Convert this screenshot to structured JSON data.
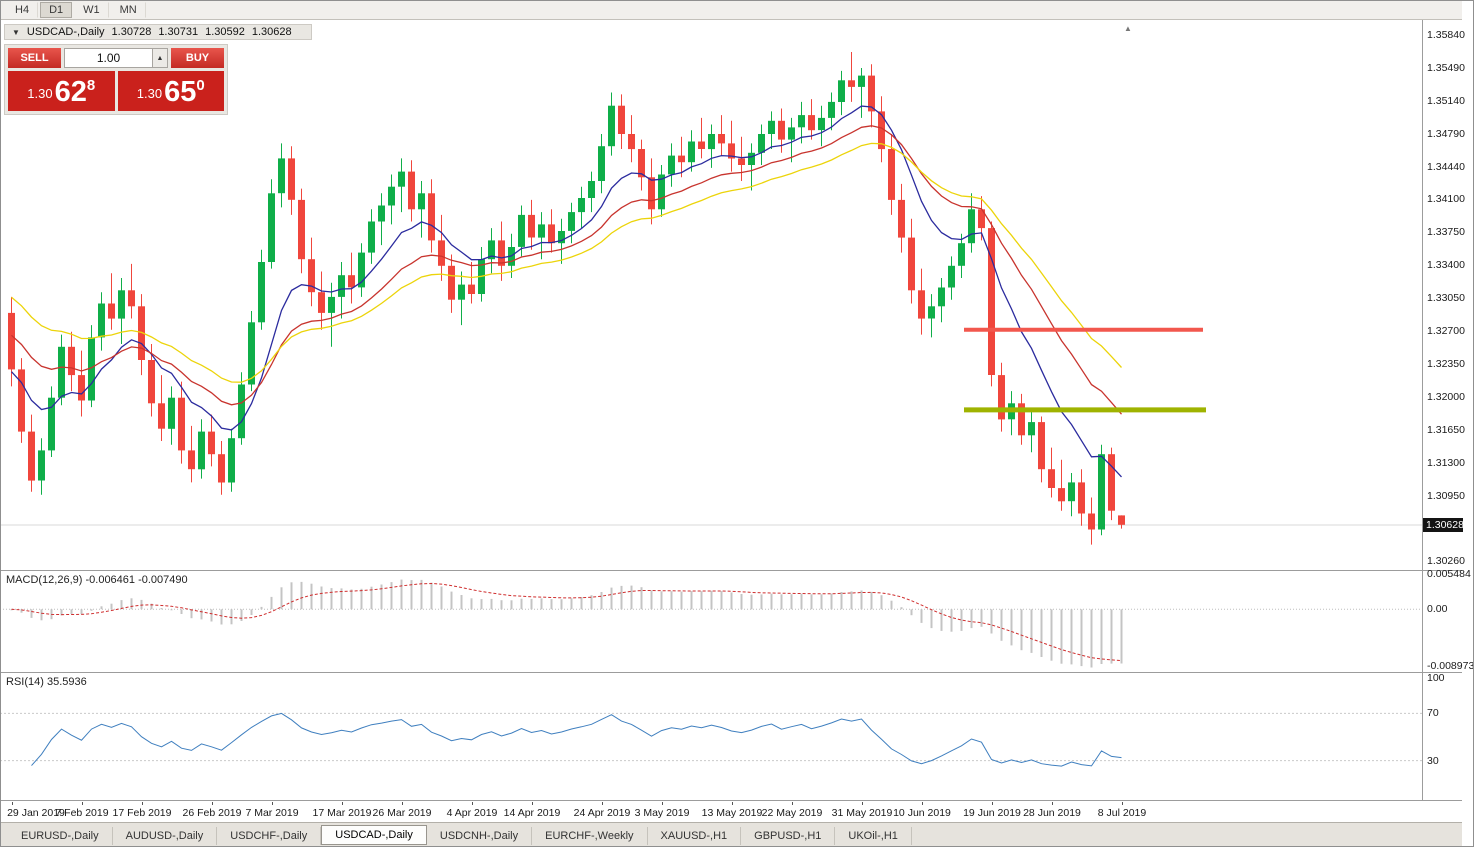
{
  "toolbar": {
    "timeframes": [
      "H4",
      "D1",
      "W1",
      "MN"
    ],
    "active": "D1"
  },
  "chart_header": {
    "symbol": "USDCAD-,Daily",
    "open": "1.30728",
    "high": "1.30731",
    "low": "1.30592",
    "close": "1.30628"
  },
  "trade_panel": {
    "sell_button": "SELL",
    "buy_button": "BUY",
    "volume": "1.00",
    "spinner_icon": "▲",
    "sell_price_prefix": "1.30",
    "sell_price_big": "62",
    "sell_price_sup": "8",
    "buy_price_prefix": "1.30",
    "buy_price_big": "65",
    "buy_price_sup": "0"
  },
  "indicators": {
    "macd_label": "MACD(12,26,9)",
    "macd_values": "-0.006461 -0.007490",
    "rsi_label": "RSI(14)",
    "rsi_value": "35.5936"
  },
  "tabs": {
    "items": [
      "EURUSD-,Daily",
      "AUDUSD-,Daily",
      "USDCHF-,Daily",
      "USDCAD-,Daily",
      "USDCNH-,Daily",
      "EURCHF-,Weekly",
      "XAUUSD-,H1",
      "GBPUSD-,H1",
      "UKOil-,H1"
    ],
    "active": "USDCAD-,Daily"
  },
  "chart_data": {
    "type": "candlestick",
    "title": "USDCAD-,Daily",
    "ohlc_display": {
      "open": 1.30728,
      "high": 1.30731,
      "low": 1.30592,
      "close": 1.30628
    },
    "y_range": [
      1.3015,
      1.3599
    ],
    "y_axis_labels": [
      "1.35840",
      "1.35490",
      "1.35140",
      "1.34790",
      "1.34440",
      "1.34100",
      "1.33750",
      "1.33400",
      "1.33050",
      "1.32700",
      "1.32350",
      "1.32000",
      "1.31650",
      "1.31300",
      "1.30950",
      "1.30260"
    ],
    "current_price": 1.30628,
    "current_price_label": "1.30628",
    "colors": {
      "up": "#0fae49",
      "down": "#f0463c",
      "current_line": "#d8d8d8"
    },
    "x_labels": [
      {
        "i": 0,
        "t": "29 Jan 2019"
      },
      {
        "i": 7,
        "t": "7 Feb 2019"
      },
      {
        "i": 13,
        "t": "17 Feb 2019"
      },
      {
        "i": 20,
        "t": "26 Feb 2019"
      },
      {
        "i": 26,
        "t": "7 Mar 2019"
      },
      {
        "i": 33,
        "t": "17 Mar 2019"
      },
      {
        "i": 39,
        "t": "26 Mar 2019"
      },
      {
        "i": 46,
        "t": "4 Apr 2019"
      },
      {
        "i": 52,
        "t": "14 Apr 2019"
      },
      {
        "i": 59,
        "t": "24 Apr 2019"
      },
      {
        "i": 65,
        "t": "3 May 2019"
      },
      {
        "i": 72,
        "t": "13 May 2019"
      },
      {
        "i": 78,
        "t": "22 May 2019"
      },
      {
        "i": 85,
        "t": "31 May 2019"
      },
      {
        "i": 91,
        "t": "10 Jun 2019"
      },
      {
        "i": 98,
        "t": "19 Jun 2019"
      },
      {
        "i": 104,
        "t": "28 Jun 2019"
      },
      {
        "i": 111,
        "t": "8 Jul 2019"
      }
    ],
    "candles": [
      [
        1.3288,
        1.3305,
        1.321,
        1.3228
      ],
      [
        1.3228,
        1.324,
        1.315,
        1.3162
      ],
      [
        1.3162,
        1.318,
        1.3098,
        1.311
      ],
      [
        1.311,
        1.3155,
        1.3095,
        1.3142
      ],
      [
        1.3142,
        1.321,
        1.3135,
        1.3198
      ],
      [
        1.3198,
        1.3265,
        1.319,
        1.3252
      ],
      [
        1.3252,
        1.3268,
        1.3205,
        1.3222
      ],
      [
        1.3222,
        1.3248,
        1.3178,
        1.3195
      ],
      [
        1.3195,
        1.3275,
        1.3188,
        1.3262
      ],
      [
        1.3262,
        1.331,
        1.3248,
        1.3298
      ],
      [
        1.3298,
        1.333,
        1.327,
        1.3282
      ],
      [
        1.3282,
        1.3325,
        1.3255,
        1.3312
      ],
      [
        1.3312,
        1.334,
        1.3282,
        1.3295
      ],
      [
        1.3295,
        1.3308,
        1.3222,
        1.3238
      ],
      [
        1.3238,
        1.3255,
        1.3178,
        1.3192
      ],
      [
        1.3192,
        1.3222,
        1.3152,
        1.3165
      ],
      [
        1.3165,
        1.321,
        1.3148,
        1.3198
      ],
      [
        1.3198,
        1.3215,
        1.3128,
        1.3142
      ],
      [
        1.3142,
        1.3168,
        1.3108,
        1.3122
      ],
      [
        1.3122,
        1.3175,
        1.3112,
        1.3162
      ],
      [
        1.3162,
        1.318,
        1.3125,
        1.3138
      ],
      [
        1.3138,
        1.3152,
        1.3095,
        1.3108
      ],
      [
        1.3108,
        1.3165,
        1.3098,
        1.3155
      ],
      [
        1.3155,
        1.3225,
        1.3148,
        1.3212
      ],
      [
        1.3212,
        1.329,
        1.3205,
        1.3278
      ],
      [
        1.3278,
        1.3355,
        1.327,
        1.3342
      ],
      [
        1.3342,
        1.343,
        1.3335,
        1.3415
      ],
      [
        1.3415,
        1.3468,
        1.34,
        1.3452
      ],
      [
        1.3452,
        1.3465,
        1.3392,
        1.3408
      ],
      [
        1.3408,
        1.342,
        1.333,
        1.3345
      ],
      [
        1.3345,
        1.3368,
        1.3295,
        1.331
      ],
      [
        1.331,
        1.3332,
        1.327,
        1.3288
      ],
      [
        1.3288,
        1.332,
        1.3252,
        1.3305
      ],
      [
        1.3305,
        1.3342,
        1.3282,
        1.3328
      ],
      [
        1.3328,
        1.3352,
        1.3298,
        1.3315
      ],
      [
        1.3315,
        1.3362,
        1.3305,
        1.3352
      ],
      [
        1.3352,
        1.3398,
        1.334,
        1.3385
      ],
      [
        1.3385,
        1.3415,
        1.336,
        1.3402
      ],
      [
        1.3402,
        1.3435,
        1.3382,
        1.3422
      ],
      [
        1.3422,
        1.3452,
        1.3395,
        1.3438
      ],
      [
        1.3438,
        1.345,
        1.3385,
        1.3398
      ],
      [
        1.3398,
        1.3428,
        1.3368,
        1.3415
      ],
      [
        1.3415,
        1.343,
        1.3352,
        1.3365
      ],
      [
        1.3365,
        1.3392,
        1.3322,
        1.3338
      ],
      [
        1.3338,
        1.335,
        1.3288,
        1.3302
      ],
      [
        1.3302,
        1.3332,
        1.3275,
        1.3318
      ],
      [
        1.3318,
        1.3342,
        1.3298,
        1.3308
      ],
      [
        1.3308,
        1.3358,
        1.33,
        1.3345
      ],
      [
        1.3345,
        1.3378,
        1.333,
        1.3365
      ],
      [
        1.3365,
        1.3385,
        1.3322,
        1.3338
      ],
      [
        1.3338,
        1.3372,
        1.3325,
        1.3358
      ],
      [
        1.3358,
        1.3402,
        1.3348,
        1.3392
      ],
      [
        1.3392,
        1.3408,
        1.3355,
        1.3368
      ],
      [
        1.3368,
        1.3395,
        1.3345,
        1.3382
      ],
      [
        1.3382,
        1.3398,
        1.3352,
        1.3362
      ],
      [
        1.3362,
        1.3388,
        1.334,
        1.3375
      ],
      [
        1.3375,
        1.3405,
        1.3362,
        1.3395
      ],
      [
        1.3395,
        1.3422,
        1.3378,
        1.341
      ],
      [
        1.341,
        1.3438,
        1.3395,
        1.3428
      ],
      [
        1.3428,
        1.3478,
        1.3415,
        1.3465
      ],
      [
        1.3465,
        1.3522,
        1.3455,
        1.3508
      ],
      [
        1.3508,
        1.352,
        1.3462,
        1.3478
      ],
      [
        1.3478,
        1.3498,
        1.3448,
        1.3462
      ],
      [
        1.3462,
        1.3472,
        1.3418,
        1.3432
      ],
      [
        1.3432,
        1.3452,
        1.3382,
        1.3398
      ],
      [
        1.3398,
        1.3445,
        1.339,
        1.3435
      ],
      [
        1.3435,
        1.3468,
        1.3422,
        1.3455
      ],
      [
        1.3455,
        1.3475,
        1.3432,
        1.3448
      ],
      [
        1.3448,
        1.3482,
        1.3438,
        1.347
      ],
      [
        1.347,
        1.3495,
        1.3452,
        1.3462
      ],
      [
        1.3462,
        1.3488,
        1.3442,
        1.3478
      ],
      [
        1.3478,
        1.3498,
        1.3455,
        1.3468
      ],
      [
        1.3468,
        1.3492,
        1.3438,
        1.3452
      ],
      [
        1.3452,
        1.3475,
        1.3428,
        1.3445
      ],
      [
        1.3445,
        1.3468,
        1.3418,
        1.3458
      ],
      [
        1.3458,
        1.3488,
        1.3445,
        1.3478
      ],
      [
        1.3478,
        1.3502,
        1.3462,
        1.3492
      ],
      [
        1.3492,
        1.3505,
        1.3458,
        1.3472
      ],
      [
        1.3472,
        1.3495,
        1.3448,
        1.3485
      ],
      [
        1.3485,
        1.3512,
        1.3468,
        1.3498
      ],
      [
        1.3498,
        1.3515,
        1.3472,
        1.3482
      ],
      [
        1.3482,
        1.3508,
        1.3465,
        1.3495
      ],
      [
        1.3495,
        1.3522,
        1.3482,
        1.3512
      ],
      [
        1.3512,
        1.3545,
        1.3498,
        1.3535
      ],
      [
        1.3535,
        1.3565,
        1.3512,
        1.3528
      ],
      [
        1.3528,
        1.3548,
        1.3495,
        1.354
      ],
      [
        1.354,
        1.3552,
        1.3485,
        1.3502
      ],
      [
        1.3502,
        1.3518,
        1.3448,
        1.3462
      ],
      [
        1.3462,
        1.3478,
        1.3392,
        1.3408
      ],
      [
        1.3408,
        1.3425,
        1.3352,
        1.3368
      ],
      [
        1.3368,
        1.3388,
        1.3298,
        1.3312
      ],
      [
        1.3312,
        1.3335,
        1.3265,
        1.3282
      ],
      [
        1.3282,
        1.3308,
        1.3262,
        1.3295
      ],
      [
        1.3295,
        1.3325,
        1.3278,
        1.3315
      ],
      [
        1.3315,
        1.3348,
        1.3302,
        1.3338
      ],
      [
        1.3338,
        1.3372,
        1.3325,
        1.3362
      ],
      [
        1.3362,
        1.3415,
        1.3352,
        1.3398
      ],
      [
        1.3398,
        1.3412,
        1.3365,
        1.3378
      ],
      [
        1.3378,
        1.3385,
        1.321,
        1.3222
      ],
      [
        1.3222,
        1.3235,
        1.3162,
        1.3175
      ],
      [
        1.3175,
        1.3205,
        1.3158,
        1.3192
      ],
      [
        1.3192,
        1.3202,
        1.3148,
        1.3158
      ],
      [
        1.3158,
        1.3185,
        1.314,
        1.3172
      ],
      [
        1.3172,
        1.3178,
        1.3108,
        1.3122
      ],
      [
        1.3122,
        1.3145,
        1.3092,
        1.3102
      ],
      [
        1.3102,
        1.3132,
        1.3078,
        1.3088
      ],
      [
        1.3088,
        1.3118,
        1.3072,
        1.3108
      ],
      [
        1.3108,
        1.3122,
        1.3062,
        1.3075
      ],
      [
        1.3075,
        1.3092,
        1.3042,
        1.3058
      ],
      [
        1.3058,
        1.3148,
        1.3052,
        1.3138
      ],
      [
        1.3138,
        1.3145,
        1.3068,
        1.3078
      ],
      [
        1.3073,
        1.3073,
        1.3059,
        1.3063
      ]
    ],
    "moving_averages": [
      {
        "name": "ma-fast-blue",
        "period": 10,
        "seed": 1.3225,
        "color": "#2b2b9e"
      },
      {
        "name": "ma-mid-red",
        "period": 20,
        "seed": 1.3268,
        "color": "#c8342e"
      },
      {
        "name": "ma-slow-yellow",
        "period": 30,
        "seed": 1.331,
        "color": "#ecd40a"
      }
    ],
    "levels": [
      {
        "name": "resistance-line",
        "price": 1.327,
        "x1": 964,
        "x2": 1203,
        "color": "#f2574d",
        "width": 4
      },
      {
        "name": "support-line",
        "price": 1.3185,
        "x1": 964,
        "x2": 1206,
        "color": "#9fb300",
        "width": 5
      }
    ],
    "macd": {
      "params": [
        12,
        26,
        9
      ],
      "range": [
        -0.01,
        0.006
      ],
      "axis_labels": [
        "0.005484",
        "0.00",
        "-0.008973"
      ],
      "hist_color": "#c4c4c4",
      "signal_color": "#cf2e2e"
    },
    "rsi": {
      "period": 14,
      "levels": [
        70,
        30
      ],
      "axis_labels": [
        "100",
        "70",
        "30"
      ],
      "color": "#3f7fbf"
    }
  }
}
